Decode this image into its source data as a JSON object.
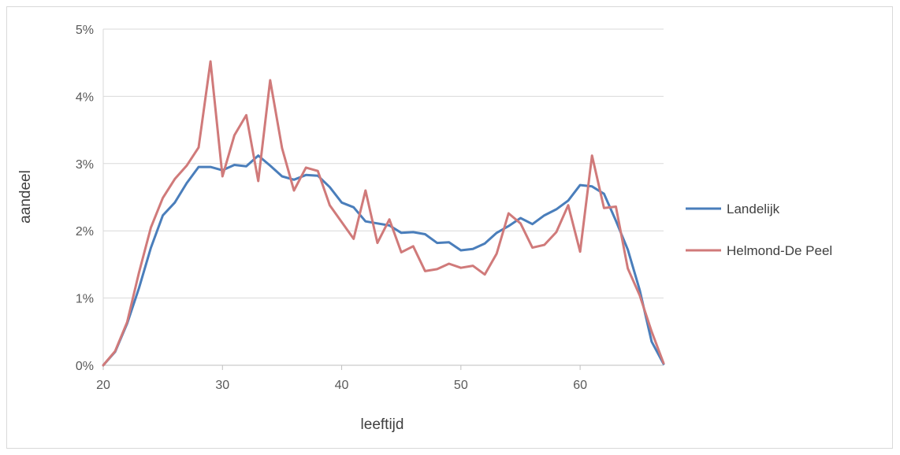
{
  "chart_data": {
    "type": "line",
    "title": "",
    "xlabel": "leeftijd",
    "ylabel": "aandeel",
    "xlim": [
      20,
      67
    ],
    "ylim": [
      0,
      5
    ],
    "x_ticks": [
      20,
      30,
      40,
      50,
      60
    ],
    "x_tick_labels": [
      "20",
      "30",
      "40",
      "50",
      "60"
    ],
    "y_ticks": [
      0,
      1,
      2,
      3,
      4,
      5
    ],
    "y_tick_labels": [
      "0%",
      "1%",
      "2%",
      "3%",
      "4%",
      "5%"
    ],
    "grid": "horizontal",
    "legend_position": "right",
    "x": [
      20,
      21,
      22,
      23,
      24,
      25,
      26,
      27,
      28,
      29,
      30,
      31,
      32,
      33,
      34,
      35,
      36,
      37,
      38,
      39,
      40,
      41,
      42,
      43,
      44,
      45,
      46,
      47,
      48,
      49,
      50,
      51,
      52,
      53,
      54,
      55,
      56,
      57,
      58,
      59,
      60,
      61,
      62,
      63,
      64,
      65,
      66,
      67
    ],
    "series": [
      {
        "name": "Landelijk",
        "color": "#4a7ebb",
        "values": [
          0.0,
          0.2,
          0.62,
          1.15,
          1.75,
          2.23,
          2.42,
          2.71,
          2.95,
          2.95,
          2.9,
          2.98,
          2.96,
          3.12,
          2.97,
          2.81,
          2.76,
          2.83,
          2.82,
          2.65,
          2.42,
          2.35,
          2.14,
          2.11,
          2.08,
          1.97,
          1.98,
          1.95,
          1.82,
          1.83,
          1.71,
          1.73,
          1.81,
          1.97,
          2.07,
          2.19,
          2.1,
          2.23,
          2.32,
          2.45,
          2.68,
          2.66,
          2.55,
          2.15,
          1.72,
          1.12,
          0.35,
          0.02
        ]
      },
      {
        "name": "Helmond-De Peel",
        "color": "#d07a7a",
        "values": [
          0.0,
          0.21,
          0.64,
          1.38,
          2.05,
          2.49,
          2.77,
          2.97,
          3.24,
          4.52,
          2.81,
          3.42,
          3.72,
          2.74,
          4.24,
          3.23,
          2.6,
          2.94,
          2.89,
          2.38,
          2.13,
          1.88,
          2.6,
          1.82,
          2.17,
          1.68,
          1.77,
          1.4,
          1.43,
          1.51,
          1.45,
          1.48,
          1.35,
          1.66,
          2.26,
          2.11,
          1.75,
          1.79,
          1.98,
          2.38,
          1.69,
          3.12,
          2.34,
          2.36,
          1.44,
          1.04,
          0.5,
          0.03
        ]
      }
    ]
  }
}
